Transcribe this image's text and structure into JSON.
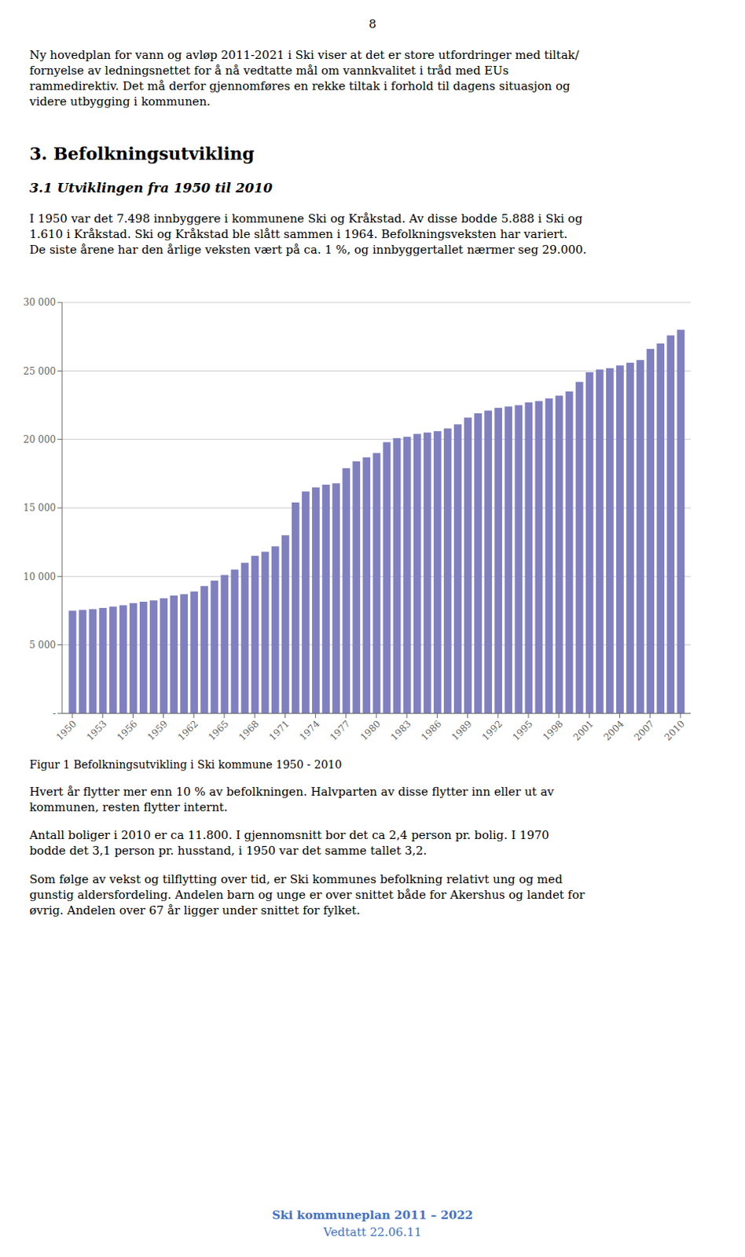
{
  "page": {
    "page_number": "8",
    "paragraphs_before": [
      [
        "Ny hovedplan for vann og avløp 2011-2021 i Ski viser at det er store utfordringer med tiltak/",
        "fornyelse av ledningsnettet for å nå vedtatte mål om vannkvalitet i tråd med EUs",
        "rammedirektiv. Det må derfor gjennomføres en rekke tiltak i forhold til dagens situasjon og",
        "videre utbygging i kommunen."
      ]
    ],
    "section_heading": "3. Befolkningsutvikling",
    "subsection_heading": "3.1 Utviklingen fra 1950 til 2010",
    "paragraphs_middle": [
      [
        "I 1950 var det 7.498 innbyggere i kommunene Ski og Kråkstad. Av disse bodde 5.888 i Ski og",
        "1.610 i Kråkstad. Ski og Kråkstad ble slått sammen i 1964. Befolkningsveksten har variert.",
        "De siste årene har den årlige veksten vært på ca. 1 %, og innbyggertallet nærmer seg 29.000."
      ]
    ],
    "paragraphs_after": [
      [
        "Hvert år flytter mer enn 10 % av befolkningen. Halvparten av disse flytter inn eller ut av",
        "kommunen, resten flytter internt."
      ],
      [
        "Antall boliger i 2010 er ca 11.800. I gjennomsnitt bor det ca 2,4 person pr. bolig. I 1970",
        "bodde det 3,1 person pr. husstand, i 1950 var det samme tallet 3,2."
      ],
      [
        "Som følge av vekst og tilflytting over tid, er Ski kommunes befolkning relativt ung og med",
        "gunstig aldersfordeling. Andelen barn og unge er over snittet både for Akershus og landet for",
        "øvrig. Andelen over 67 år ligger under snittet for fylket."
      ]
    ],
    "footer": [
      "Ski kommuneplan 2011 – 2022",
      "Vedtatt 22.06.11"
    ],
    "footer_color": "#4472C4"
  },
  "chart_data": {
    "type": "bar",
    "title": "Figur 1 Befolkningsutvikling i Ski kommune 1950 - 2010",
    "x": [
      1950,
      1951,
      1952,
      1953,
      1954,
      1955,
      1956,
      1957,
      1958,
      1959,
      1960,
      1961,
      1962,
      1963,
      1964,
      1965,
      1966,
      1967,
      1968,
      1969,
      1970,
      1971,
      1972,
      1973,
      1974,
      1975,
      1976,
      1977,
      1978,
      1979,
      1980,
      1981,
      1982,
      1983,
      1984,
      1985,
      1986,
      1987,
      1988,
      1989,
      1990,
      1991,
      1992,
      1993,
      1994,
      1995,
      1996,
      1997,
      1998,
      1999,
      2000,
      2001,
      2002,
      2003,
      2004,
      2005,
      2006,
      2007,
      2008,
      2009,
      2010
    ],
    "values": [
      7498,
      7550,
      7620,
      7700,
      7800,
      7900,
      8050,
      8150,
      8250,
      8400,
      8600,
      8700,
      8900,
      9300,
      9700,
      10100,
      10500,
      11000,
      11500,
      11800,
      12200,
      13000,
      15400,
      16200,
      16500,
      16700,
      16800,
      17900,
      18400,
      18700,
      19000,
      19800,
      20100,
      20200,
      20400,
      20500,
      20600,
      20800,
      21100,
      21600,
      21900,
      22100,
      22300,
      22400,
      22500,
      22700,
      22800,
      23000,
      23200,
      23500,
      24200,
      24900,
      25100,
      25200,
      25400,
      25600,
      25800,
      26600,
      27000,
      27600,
      28000
    ],
    "color": "#8080C0",
    "xlim": [
      1949,
      2011
    ],
    "xticks": [
      1950,
      1953,
      1956,
      1959,
      1962,
      1965,
      1968,
      1971,
      1974,
      1977,
      1980,
      1983,
      1986,
      1989,
      1992,
      1995,
      1998,
      2001,
      2004,
      2007,
      2010
    ],
    "ylim": [
      0,
      30000
    ],
    "yticks": [
      {
        "value": 0,
        "label": "-"
      },
      {
        "value": 5000,
        "label": "5 000"
      },
      {
        "value": 10000,
        "label": "10 000"
      },
      {
        "value": 15000,
        "label": "15 000"
      },
      {
        "value": 20000,
        "label": "20 000"
      },
      {
        "value": 25000,
        "label": "25 000"
      },
      {
        "value": 30000,
        "label": "30 000"
      }
    ],
    "grid": true
  }
}
